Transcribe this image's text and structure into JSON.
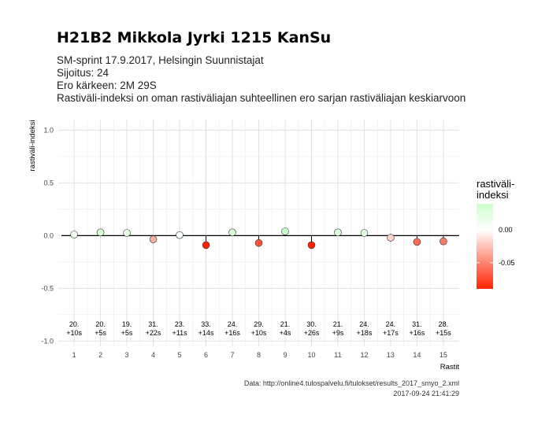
{
  "header": {
    "title": "H21B2 Mikkola Jyrki 1215 KanSu",
    "subtitle_lines": [
      "SM-sprint 17.9.2017, Helsingin Suunnistajat",
      "Sijoitus: 24",
      "Ero kärkeen: 2M 29S",
      "Rastiväli-indeksi on oman rastiväliajan suhteellinen ero sarjan rastiväliajan keskiarvoon"
    ]
  },
  "footer": {
    "source": "Data: http://online4.tulospalvelu.fi/tulokset/results_2017_smyo_2.xml",
    "timestamp": "2017-09-24 21:41:29"
  },
  "chart_data": {
    "type": "scatter",
    "xlabel": "Rastit",
    "ylabel": "rastiväli-indeksi",
    "ylim": [
      -1.0,
      1.0
    ],
    "yticks": [
      "1.0",
      "0.5",
      "0.0",
      "-0.5",
      "-1.0"
    ],
    "ytick_values": [
      1.0,
      0.5,
      0.0,
      -0.5,
      -1.0
    ],
    "x": [
      1,
      2,
      3,
      4,
      5,
      6,
      7,
      8,
      9,
      10,
      11,
      12,
      13,
      14,
      15
    ],
    "xticks": [
      "1",
      "2",
      "3",
      "4",
      "5",
      "6",
      "7",
      "8",
      "9",
      "10",
      "11",
      "12",
      "13",
      "14",
      "15"
    ],
    "values": [
      0.01,
      0.03,
      0.025,
      -0.035,
      0.005,
      -0.09,
      0.03,
      -0.07,
      0.04,
      -0.09,
      0.03,
      0.025,
      -0.02,
      -0.06,
      -0.055
    ],
    "annotations": [
      [
        "20.",
        "+10s"
      ],
      [
        "20.",
        "+5s"
      ],
      [
        "19.",
        "+5s"
      ],
      [
        "31.",
        "+22s"
      ],
      [
        "23.",
        "+11s"
      ],
      [
        "33.",
        "+14s"
      ],
      [
        "24.",
        "+16s"
      ],
      [
        "29.",
        "+10s"
      ],
      [
        "21.",
        "+4s"
      ],
      [
        "30.",
        "+26s"
      ],
      [
        "21.",
        "+9s"
      ],
      [
        "24.",
        "+18s"
      ],
      [
        "24.",
        "+17s"
      ],
      [
        "31.",
        "+16s"
      ],
      [
        "28.",
        "+15s"
      ]
    ],
    "grid": true,
    "legend": {
      "title_lines": [
        "rastiväli-",
        "indeksi"
      ],
      "labels": [
        "0.00",
        "-0.05"
      ],
      "label_values": [
        0.0,
        -0.05
      ],
      "scale_range": [
        -0.09,
        0.04
      ],
      "placement": "right"
    },
    "colors": {
      "positive": "#ccffcc",
      "zero": "#ffffff",
      "negative": "#ff2200",
      "gridline": "#ebebeb",
      "zero_line": "#000000"
    }
  }
}
